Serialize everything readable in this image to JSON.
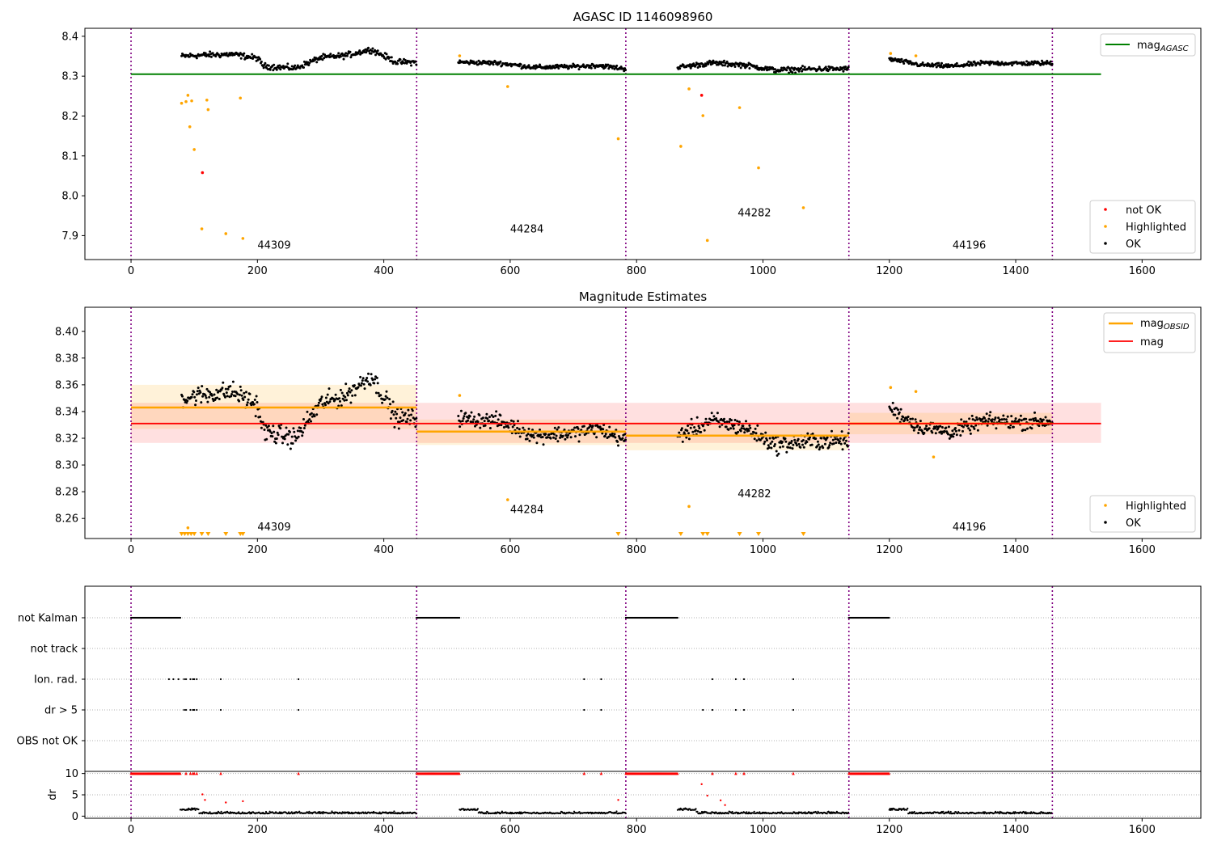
{
  "chart_data": [
    {
      "type": "scatter",
      "title": "AGASC ID 1146098960",
      "xlim": [
        -73,
        1693
      ],
      "ylim": [
        7.84,
        8.42
      ],
      "yticks": [
        "7.9",
        "8.0",
        "8.1",
        "8.2",
        "8.3",
        "8.4"
      ],
      "ytick_values": [
        7.9,
        8.0,
        8.1,
        8.2,
        8.3,
        8.4
      ],
      "xticks": [
        "0",
        "200",
        "400",
        "600",
        "800",
        "1000",
        "1200",
        "1400",
        "1600"
      ],
      "xtick_values": [
        0,
        200,
        400,
        600,
        800,
        1000,
        1200,
        1400,
        1600
      ],
      "obs_boundaries": [
        0,
        452,
        783,
        1136,
        1458
      ],
      "obs_labels": [
        {
          "text": "44309",
          "x": 200,
          "y": 7.867
        },
        {
          "text": "44284",
          "x": 600,
          "y": 7.908
        },
        {
          "text": "44282",
          "x": 960,
          "y": 7.949
        },
        {
          "text": "44196",
          "x": 1300,
          "y": 7.867
        }
      ],
      "mag_agasc": {
        "value": 8.305,
        "x_range": [
          0,
          1535
        ],
        "color": "#008000"
      },
      "ok_segments": [
        {
          "x0": 80,
          "x1": 452,
          "nodes": [
            [
              80,
              8.35
            ],
            [
              120,
              8.353
            ],
            [
              160,
              8.355
            ],
            [
              200,
              8.345
            ],
            [
              210,
              8.325
            ],
            [
              260,
              8.32
            ],
            [
              300,
              8.346
            ],
            [
              340,
              8.352
            ],
            [
              380,
              8.367
            ],
            [
              420,
              8.335
            ],
            [
              452,
              8.335
            ]
          ],
          "noise": 0.009
        },
        {
          "x0": 518,
          "x1": 783,
          "nodes": [
            [
              518,
              8.335
            ],
            [
              580,
              8.333
            ],
            [
              640,
              8.322
            ],
            [
              700,
              8.324
            ],
            [
              740,
              8.327
            ],
            [
              783,
              8.318
            ]
          ],
          "noise": 0.007
        },
        {
          "x0": 865,
          "x1": 1136,
          "nodes": [
            [
              865,
              8.322
            ],
            [
              920,
              8.333
            ],
            [
              970,
              8.328
            ],
            [
              1020,
              8.315
            ],
            [
              1080,
              8.318
            ],
            [
              1136,
              8.318
            ]
          ],
          "noise": 0.008
        },
        {
          "x0": 1200,
          "x1": 1458,
          "nodes": [
            [
              1200,
              8.343
            ],
            [
              1250,
              8.328
            ],
            [
              1300,
              8.325
            ],
            [
              1350,
              8.333
            ],
            [
              1400,
              8.332
            ],
            [
              1458,
              8.333
            ]
          ],
          "noise": 0.007
        }
      ],
      "highlighted": [
        [
          80,
          8.232
        ],
        [
          87,
          8.236
        ],
        [
          90,
          8.252
        ],
        [
          93,
          8.173
        ],
        [
          96,
          8.238
        ],
        [
          100,
          8.116
        ],
        [
          112,
          7.917
        ],
        [
          120,
          8.24
        ],
        [
          122,
          8.216
        ],
        [
          150,
          7.905
        ],
        [
          173,
          8.245
        ],
        [
          177,
          7.893
        ],
        [
          520,
          8.351
        ],
        [
          596,
          8.274
        ],
        [
          771,
          8.143
        ],
        [
          870,
          8.124
        ],
        [
          883,
          8.268
        ],
        [
          905,
          8.201
        ],
        [
          912,
          7.888
        ],
        [
          963,
          8.221
        ],
        [
          993,
          8.07
        ],
        [
          1064,
          7.97
        ],
        [
          1202,
          8.357
        ],
        [
          1242,
          8.351
        ]
      ],
      "not_ok": [
        [
          113,
          8.058
        ],
        [
          903,
          8.252
        ]
      ],
      "legend_lower": [
        "not OK",
        "Highlighted",
        "OK"
      ],
      "legend_upper": [
        "mag_AGASC"
      ]
    },
    {
      "type": "scatter",
      "title": "Magnitude Estimates",
      "xlim": [
        -73,
        1693
      ],
      "ylim": [
        8.245,
        8.418
      ],
      "yticks": [
        "8.26",
        "8.28",
        "8.30",
        "8.32",
        "8.34",
        "8.36",
        "8.38",
        "8.40"
      ],
      "ytick_values": [
        8.26,
        8.28,
        8.3,
        8.32,
        8.34,
        8.36,
        8.38,
        8.4
      ],
      "xticks": [
        "0",
        "200",
        "400",
        "600",
        "800",
        "1000",
        "1200",
        "1400",
        "1600"
      ],
      "xtick_values": [
        0,
        200,
        400,
        600,
        800,
        1000,
        1200,
        1400,
        1600
      ],
      "obs_boundaries": [
        0,
        452,
        783,
        1136,
        1458
      ],
      "obs_labels": [
        {
          "text": "44309",
          "x": 200,
          "y": 8.251
        },
        {
          "text": "44284",
          "x": 600,
          "y": 8.264
        },
        {
          "text": "44282",
          "x": 960,
          "y": 8.276
        },
        {
          "text": "44196",
          "x": 1300,
          "y": 8.251
        }
      ],
      "mag": {
        "value": 8.331,
        "band": [
          8.3165,
          8.3465
        ],
        "x_range": [
          0,
          1535
        ],
        "color": "#ff0000"
      },
      "mag_obsid": [
        {
          "x0": 0,
          "x1": 452,
          "value": 8.343,
          "band": [
            8.327,
            8.36
          ]
        },
        {
          "x0": 452,
          "x1": 783,
          "value": 8.325,
          "band": [
            8.315,
            8.334
          ]
        },
        {
          "x0": 783,
          "x1": 1136,
          "value": 8.322,
          "band": [
            8.311,
            8.332
          ]
        },
        {
          "x0": 1136,
          "x1": 1458,
          "value": 8.331,
          "band": [
            8.323,
            8.339
          ]
        }
      ],
      "ok_segments": [
        {
          "x0": 80,
          "x1": 452,
          "nodes": [
            [
              80,
              8.35
            ],
            [
              120,
              8.353
            ],
            [
              160,
              8.355
            ],
            [
              200,
              8.345
            ],
            [
              210,
              8.325
            ],
            [
              260,
              8.32
            ],
            [
              300,
              8.346
            ],
            [
              340,
              8.352
            ],
            [
              380,
              8.367
            ],
            [
              420,
              8.335
            ],
            [
              452,
              8.335
            ]
          ],
          "noise": 0.009
        },
        {
          "x0": 518,
          "x1": 783,
          "nodes": [
            [
              518,
              8.335
            ],
            [
              580,
              8.333
            ],
            [
              640,
              8.322
            ],
            [
              700,
              8.324
            ],
            [
              740,
              8.327
            ],
            [
              783,
              8.318
            ]
          ],
          "noise": 0.007
        },
        {
          "x0": 865,
          "x1": 1136,
          "nodes": [
            [
              865,
              8.322
            ],
            [
              920,
              8.333
            ],
            [
              970,
              8.328
            ],
            [
              1020,
              8.315
            ],
            [
              1080,
              8.318
            ],
            [
              1136,
              8.318
            ]
          ],
          "noise": 0.008
        },
        {
          "x0": 1200,
          "x1": 1458,
          "nodes": [
            [
              1200,
              8.343
            ],
            [
              1250,
              8.328
            ],
            [
              1300,
              8.325
            ],
            [
              1350,
              8.333
            ],
            [
              1400,
              8.332
            ],
            [
              1458,
              8.333
            ]
          ],
          "noise": 0.007
        }
      ],
      "highlighted": [
        [
          90,
          8.253
        ],
        [
          520,
          8.352
        ],
        [
          596,
          8.274
        ],
        [
          883,
          8.269
        ],
        [
          1202,
          8.358
        ],
        [
          1242,
          8.355
        ],
        [
          1270,
          8.306
        ]
      ],
      "offscale_low": [
        80,
        85,
        90,
        95,
        100,
        112,
        122,
        150,
        173,
        177,
        771,
        870,
        905,
        912,
        963,
        993,
        1064
      ],
      "legend_lower": [
        "Highlighted",
        "OK"
      ],
      "legend_upper": [
        "mag_OBSID",
        "mag"
      ]
    },
    {
      "type": "scatter",
      "title": "",
      "xlim": [
        -73,
        1693
      ],
      "categories": [
        "not Kalman",
        "not track",
        "Ion. rad.",
        "dr > 5",
        "OBS not OK"
      ],
      "flags": {
        "not Kalman": {
          "ranges": [
            [
              0,
              78
            ],
            [
              452,
              520
            ],
            [
              783,
              865
            ],
            [
              1136,
              1200
            ]
          ]
        },
        "not track": {
          "points": []
        },
        "Ion. rad.": {
          "points": [
            60,
            67,
            75,
            84,
            87,
            94,
            98,
            100,
            104,
            142,
            265,
            717,
            744,
            920,
            957,
            970,
            1048
          ]
        },
        "dr > 5": {
          "points": [
            84,
            87,
            94,
            98,
            100,
            104,
            142,
            265,
            717,
            744,
            905,
            920,
            957,
            970,
            1048
          ]
        },
        "OBS not OK": {
          "points": []
        }
      }
    },
    {
      "type": "scatter",
      "ylabel": "dr",
      "xlim": [
        -73,
        1693
      ],
      "ylim": [
        -0.5,
        10.5
      ],
      "yticks": [
        "0",
        "5",
        "10"
      ],
      "ytick_values": [
        0,
        5,
        10
      ],
      "xticks": [
        "0",
        "200",
        "400",
        "600",
        "800",
        "1000",
        "1200",
        "1400",
        "1600"
      ],
      "xtick_values": [
        0,
        200,
        400,
        600,
        800,
        1000,
        1200,
        1400,
        1600
      ],
      "dr_clipped_ranges": [
        [
          0,
          78
        ],
        [
          452,
          520
        ],
        [
          783,
          865
        ],
        [
          1136,
          1200
        ]
      ],
      "dr_clipped_points": [
        87,
        94,
        98,
        100,
        104,
        142,
        265,
        717,
        744,
        920,
        957,
        970,
        1048
      ],
      "dr_ok_segments": [
        [
          78,
          452
        ],
        [
          520,
          783
        ],
        [
          865,
          1136
        ],
        [
          1200,
          1458
        ]
      ],
      "dr_red_points": [
        [
          113,
          5.1
        ],
        [
          117,
          3.8
        ],
        [
          150,
          3.2
        ],
        [
          177,
          3.5
        ],
        [
          771,
          3.8
        ],
        [
          903,
          7.5
        ],
        [
          912,
          4.8
        ],
        [
          933,
          3.7
        ],
        [
          940,
          2.6
        ]
      ]
    }
  ],
  "legend_labels": {
    "not_ok": "not OK",
    "highlighted": "Highlighted",
    "ok": "OK",
    "mag_agasc": "mag",
    "mag_agasc_sub": "AGASC",
    "mag_obsid": "mag",
    "mag_obsid_sub": "OBSID",
    "mag": "mag"
  },
  "colors": {
    "ok": "#000000",
    "highlighted": "#ffa500",
    "not_ok": "#ff0000",
    "boundary": "#800080",
    "mag_agasc": "#008000",
    "mag": "#ff0000",
    "mag_obsid": "#ffa500"
  }
}
